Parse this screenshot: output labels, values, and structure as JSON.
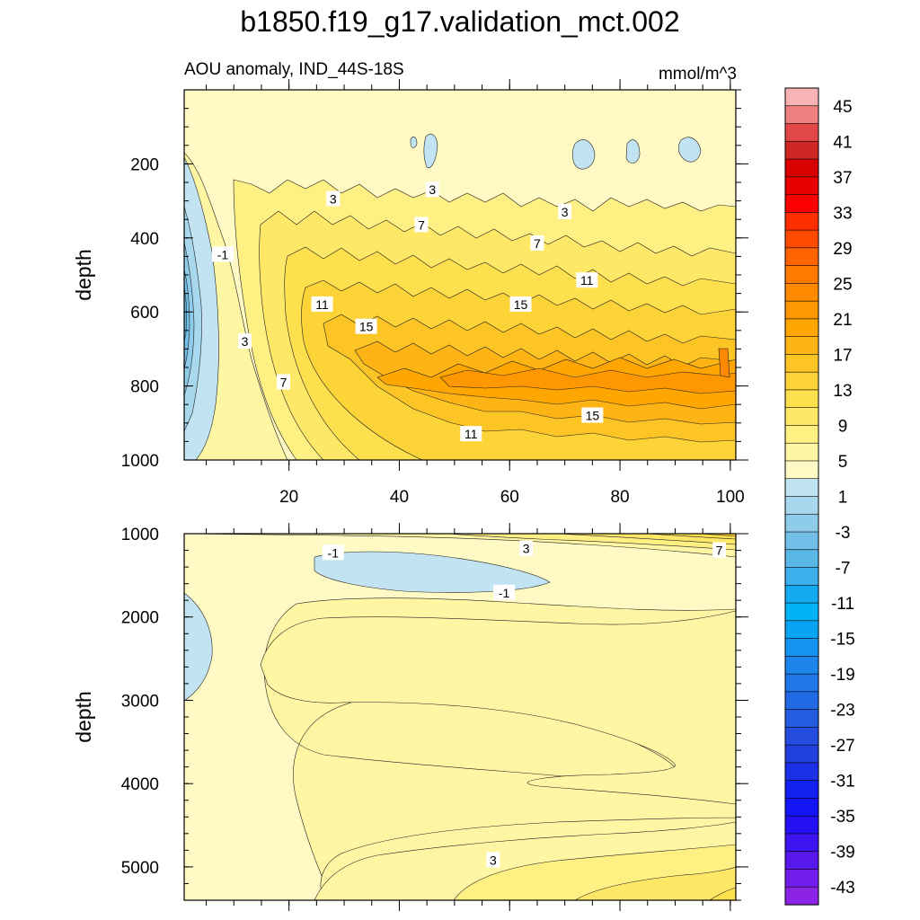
{
  "title": "b1850.f19_g17.validation_mct.002",
  "chart_data": {
    "type": "contour",
    "variable_label": "AOU anomaly, IND_44S-18S",
    "units": "mmol/m^3",
    "x_ticks": [
      "20",
      "40",
      "60",
      "80",
      "100"
    ],
    "x_range": [
      1,
      101
    ],
    "ylabel": "depth",
    "contour_interval": 2,
    "panels": [
      {
        "name": "upper",
        "ylim": [
          1000,
          0
        ],
        "y_ticks": [
          "200",
          "400",
          "600",
          "800",
          "1000"
        ],
        "contour_labels": [
          {
            "x": 46,
            "y": 270,
            "text": "3"
          },
          {
            "x": 28,
            "y": 295,
            "text": "3"
          },
          {
            "x": 70,
            "y": 330,
            "text": "3"
          },
          {
            "x": 44,
            "y": 365,
            "text": "7"
          },
          {
            "x": 65,
            "y": 415,
            "text": "7"
          },
          {
            "x": 8,
            "y": 445,
            "text": "-1"
          },
          {
            "x": 74,
            "y": 515,
            "text": "11"
          },
          {
            "x": 26,
            "y": 580,
            "text": "11"
          },
          {
            "x": 62,
            "y": 580,
            "text": "15"
          },
          {
            "x": 34,
            "y": 640,
            "text": "15"
          },
          {
            "x": 12,
            "y": 680,
            "text": "3"
          },
          {
            "x": 19,
            "y": 790,
            "text": "7"
          },
          {
            "x": 75,
            "y": 880,
            "text": "15"
          },
          {
            "x": 53,
            "y": 930,
            "text": "11"
          }
        ]
      },
      {
        "name": "lower",
        "ylim": [
          5400,
          1000
        ],
        "y_ticks": [
          "1000",
          "2000",
          "3000",
          "4000",
          "5000"
        ],
        "contour_labels": [
          {
            "x": 28,
            "y": 1230,
            "text": "-1"
          },
          {
            "x": 63,
            "y": 1180,
            "text": "3"
          },
          {
            "x": 98,
            "y": 1200,
            "text": "7"
          },
          {
            "x": 59,
            "y": 1710,
            "text": "-1"
          },
          {
            "x": 57,
            "y": 4920,
            "text": "3"
          }
        ]
      }
    ],
    "colorbar": {
      "labels": [
        "45",
        "41",
        "37",
        "33",
        "29",
        "25",
        "21",
        "17",
        "13",
        "9",
        "5",
        "1",
        "-3",
        "-7",
        "-11",
        "-15",
        "-19",
        "-23",
        "-27",
        "-31",
        "-35",
        "-39",
        "-43"
      ],
      "colors": [
        "#F8B4B4",
        "#EE8080",
        "#E04848",
        "#CF2626",
        "#D80000",
        "#E60000",
        "#FA0000",
        "#FF2E00",
        "#FF4A00",
        "#FF6400",
        "#FF7A00",
        "#FF8A00",
        "#FF9800",
        "#FFA600",
        "#FDB414",
        "#FDC426",
        "#FDD438",
        "#FEE04E",
        "#FFE868",
        "#FFF084",
        "#FFF6A4",
        "#FFFAC4",
        "#C2E4F2",
        "#A8D8EE",
        "#8ECCEA",
        "#72C0E8",
        "#5AB8E8",
        "#3CB0EC",
        "#14AAF0",
        "#00B4F6",
        "#08A4F4",
        "#1494F0",
        "#1C86EC",
        "#2078E8",
        "#226AE4",
        "#245CE0",
        "#244CDE",
        "#2240E0",
        "#1C30E8",
        "#1420F0",
        "#1414F8",
        "#2410F4",
        "#3C14F0",
        "#5818EC",
        "#741CEC",
        "#8C24E8"
      ]
    }
  }
}
